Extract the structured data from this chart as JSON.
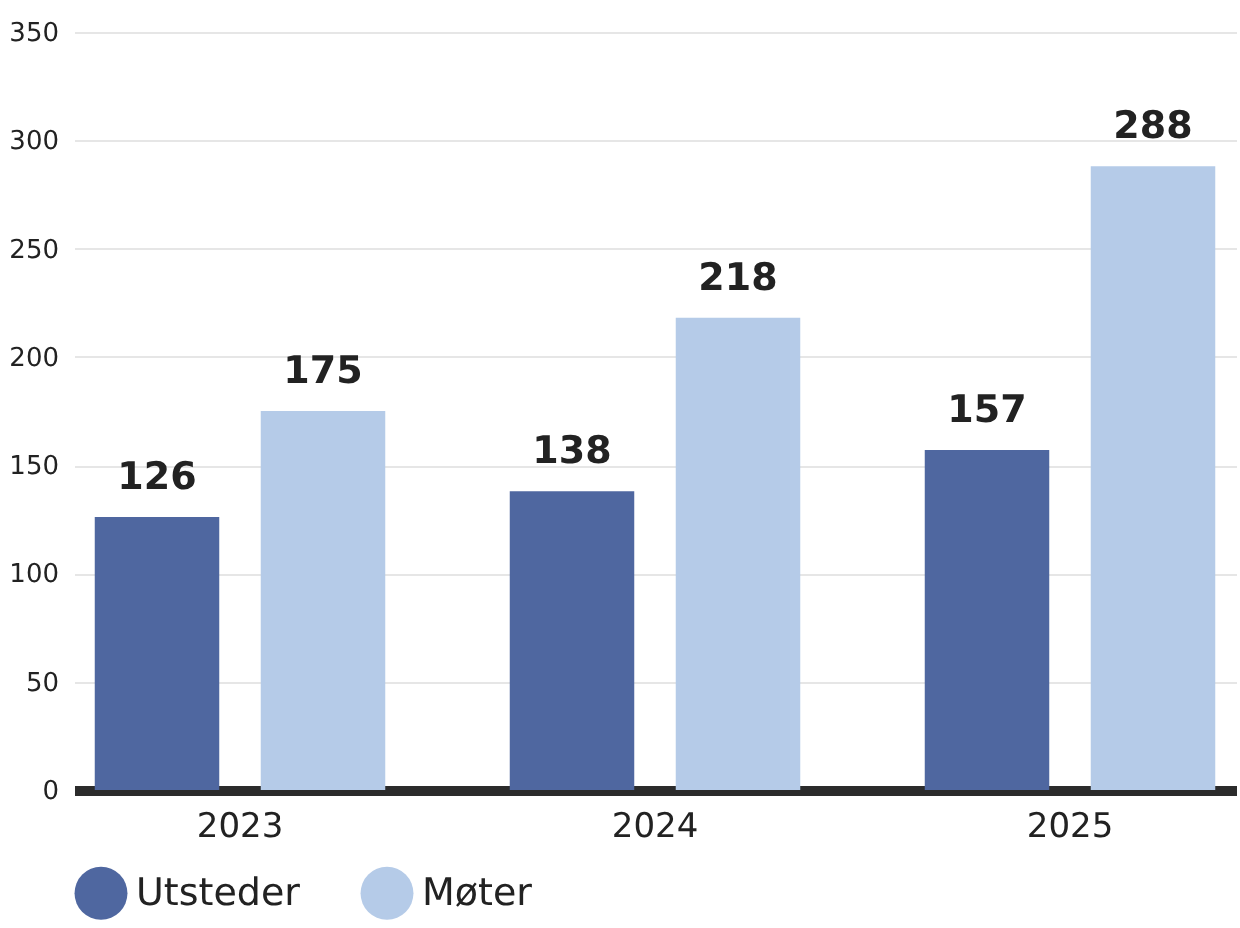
{
  "chart_data": {
    "type": "bar",
    "categories": [
      "2023",
      "2024",
      "2025"
    ],
    "series": [
      {
        "name": "Utsteder",
        "color": "#4f67a0",
        "values": [
          126,
          138,
          157
        ]
      },
      {
        "name": "Møter",
        "color": "#b5cbe8",
        "values": [
          175,
          218,
          288
        ]
      }
    ],
    "ylim": [
      0,
      350
    ],
    "yticks": [
      0,
      50,
      100,
      150,
      200,
      250,
      300,
      350
    ],
    "grid": "y",
    "legend": "bottom",
    "data_labels": true
  }
}
